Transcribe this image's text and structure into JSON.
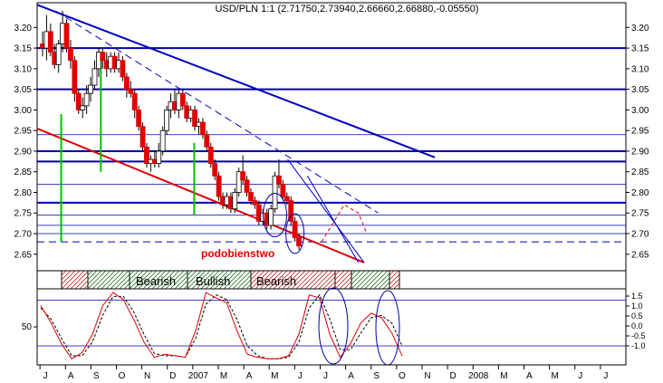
{
  "chart_data": [
    {
      "type": "candlestick",
      "title": "USD/PLN 1:1 (2.71750,2.73940,2.66660,2.66880,-0.05550)",
      "ylim": [
        2.61,
        3.26
      ],
      "y_ticks": [
        "3.20",
        "3.15",
        "3.10",
        "3.05",
        "3.00",
        "2.95",
        "2.90",
        "2.85",
        "2.80",
        "2.75",
        "2.70",
        "2.65"
      ],
      "y_tick_values": [
        3.2,
        3.15,
        3.1,
        3.05,
        3.0,
        2.95,
        2.9,
        2.85,
        2.8,
        2.75,
        2.7,
        2.65
      ],
      "x_ticks": [
        "J",
        "A",
        "S",
        "O",
        "N",
        "D",
        "2007",
        "M",
        "A",
        "M",
        "J",
        "J",
        "A",
        "S",
        "O",
        "N",
        "D",
        "2008",
        "M",
        "A",
        "M",
        "J",
        "J"
      ],
      "x_tick_index": [
        1,
        10,
        19,
        28,
        37,
        46,
        55,
        64,
        73,
        82,
        91,
        100,
        109,
        118,
        127,
        136,
        145,
        154,
        163,
        172,
        181,
        190,
        199
      ],
      "n_slots": 208,
      "annotation": "podobienstwo",
      "colors": {
        "up": "#ffffff",
        "down": "#e00000",
        "hline": "#0000aa",
        "trend_blue": "#0000c0",
        "trend_red": "#e00000",
        "green": "#00c000",
        "wick": "#000000"
      },
      "horizontal_lines": [
        3.15,
        3.05,
        2.9,
        2.875,
        2.775
      ],
      "thin_horizontal_lines": [
        2.94,
        2.82,
        2.745,
        2.72,
        2.7
      ],
      "dashed_horizontal_lines": [
        2.68
      ],
      "ohlc": [
        [
          1,
          3.16,
          3.19,
          3.13,
          3.15
        ],
        [
          2,
          3.15,
          3.23,
          3.12,
          3.19
        ],
        [
          3,
          3.19,
          3.21,
          3.13,
          3.14
        ],
        [
          4,
          3.14,
          3.16,
          3.1,
          3.11
        ],
        [
          5,
          3.11,
          3.17,
          3.09,
          3.16
        ],
        [
          6,
          3.16,
          3.24,
          3.14,
          3.21
        ],
        [
          7,
          3.21,
          3.22,
          3.14,
          3.15
        ],
        [
          8,
          3.15,
          3.17,
          3.1,
          3.12
        ],
        [
          9,
          3.12,
          3.13,
          3.02,
          3.04
        ],
        [
          10,
          3.04,
          3.05,
          2.99,
          3.0
        ],
        [
          11,
          3.0,
          3.03,
          2.98,
          3.01
        ],
        [
          12,
          3.01,
          3.06,
          2.99,
          3.04
        ],
        [
          13,
          3.04,
          3.08,
          3.02,
          3.06
        ],
        [
          14,
          3.06,
          3.12,
          3.05,
          3.1
        ],
        [
          15,
          3.1,
          3.15,
          3.08,
          3.14
        ],
        [
          16,
          3.14,
          3.15,
          3.1,
          3.12
        ],
        [
          17,
          3.12,
          3.14,
          3.08,
          3.1
        ],
        [
          18,
          3.1,
          3.14,
          3.09,
          3.13
        ],
        [
          19,
          3.13,
          3.14,
          3.09,
          3.1
        ],
        [
          20,
          3.1,
          3.14,
          3.09,
          3.12
        ],
        [
          21,
          3.12,
          3.13,
          3.07,
          3.08
        ],
        [
          22,
          3.08,
          3.09,
          3.03,
          3.05
        ],
        [
          23,
          3.05,
          3.07,
          3.03,
          3.04
        ],
        [
          24,
          3.04,
          3.05,
          2.98,
          3.0
        ],
        [
          25,
          3.0,
          3.01,
          2.95,
          2.96
        ],
        [
          26,
          2.96,
          2.97,
          2.9,
          2.91
        ],
        [
          27,
          2.91,
          2.92,
          2.86,
          2.87
        ],
        [
          28,
          2.87,
          2.89,
          2.85,
          2.88
        ],
        [
          29,
          2.88,
          2.9,
          2.86,
          2.87
        ],
        [
          30,
          2.87,
          2.92,
          2.86,
          2.9
        ],
        [
          31,
          2.9,
          2.96,
          2.89,
          2.95
        ],
        [
          32,
          2.95,
          3.01,
          2.94,
          3.0
        ],
        [
          33,
          3.0,
          3.04,
          2.98,
          3.02
        ],
        [
          34,
          3.02,
          3.05,
          2.99,
          3.0
        ],
        [
          35,
          3.0,
          3.05,
          2.98,
          3.04
        ],
        [
          36,
          3.04,
          3.05,
          3.0,
          3.01
        ],
        [
          37,
          3.01,
          3.02,
          2.97,
          2.98
        ],
        [
          38,
          2.98,
          3.01,
          2.97,
          3.0
        ],
        [
          39,
          3.0,
          3.01,
          2.95,
          2.96
        ],
        [
          40,
          2.96,
          2.98,
          2.94,
          2.97
        ],
        [
          41,
          2.97,
          2.98,
          2.93,
          2.94
        ],
        [
          42,
          2.94,
          2.95,
          2.9,
          2.91
        ],
        [
          43,
          2.91,
          2.92,
          2.86,
          2.87
        ],
        [
          44,
          2.87,
          2.88,
          2.83,
          2.84
        ],
        [
          45,
          2.84,
          2.85,
          2.78,
          2.79
        ],
        [
          46,
          2.79,
          2.8,
          2.76,
          2.77
        ],
        [
          47,
          2.77,
          2.8,
          2.76,
          2.79
        ],
        [
          48,
          2.79,
          2.8,
          2.75,
          2.76
        ],
        [
          49,
          2.76,
          2.81,
          2.75,
          2.8
        ],
        [
          50,
          2.8,
          2.86,
          2.79,
          2.85
        ],
        [
          51,
          2.85,
          2.89,
          2.82,
          2.83
        ],
        [
          52,
          2.83,
          2.84,
          2.79,
          2.8
        ],
        [
          53,
          2.8,
          2.81,
          2.77,
          2.78
        ],
        [
          54,
          2.78,
          2.79,
          2.76,
          2.77
        ],
        [
          55,
          2.77,
          2.78,
          2.72,
          2.73
        ],
        [
          56,
          2.73,
          2.76,
          2.72,
          2.75
        ],
        [
          57,
          2.75,
          2.76,
          2.71,
          2.72
        ],
        [
          58,
          2.72,
          2.77,
          2.71,
          2.76
        ],
        [
          59,
          2.76,
          2.85,
          2.75,
          2.84
        ],
        [
          60,
          2.84,
          2.88,
          2.81,
          2.82
        ],
        [
          61,
          2.82,
          2.83,
          2.78,
          2.79
        ],
        [
          62,
          2.79,
          2.8,
          2.77,
          2.78
        ],
        [
          63,
          2.78,
          2.79,
          2.72,
          2.73
        ],
        [
          64,
          2.73,
          2.74,
          2.68,
          2.69
        ],
        [
          65,
          2.69,
          2.7,
          2.66,
          2.67
        ]
      ]
    },
    {
      "type": "line",
      "title": "",
      "ylim": [
        0,
        100
      ],
      "y_ticks_left": [
        "50"
      ],
      "y_ticks_right": [
        "1.5",
        "1.0",
        "0.5",
        "0.0",
        "-0.5",
        "-1.0"
      ],
      "bands": [
        "",
        "",
        "Bearish",
        "Bullish",
        "Bearish",
        "",
        "",
        ""
      ],
      "series": [
        {
          "values": [
            78,
            55,
            28,
            8,
            16,
            40,
            78,
            95,
            86,
            60,
            30,
            10,
            14,
            12,
            10,
            45,
            95,
            88,
            82,
            45,
            14,
            10,
            8,
            8,
            12,
            40,
            92,
            88,
            40,
            10,
            28,
            55,
            68,
            62,
            42,
            12
          ]
        },
        {
          "values": [
            75,
            60,
            35,
            12,
            12,
            30,
            65,
            90,
            90,
            70,
            40,
            15,
            12,
            12,
            10,
            35,
            80,
            92,
            86,
            60,
            25,
            12,
            8,
            8,
            10,
            30,
            75,
            92,
            60,
            20,
            20,
            42,
            62,
            65,
            55,
            25
          ]
        }
      ]
    }
  ]
}
